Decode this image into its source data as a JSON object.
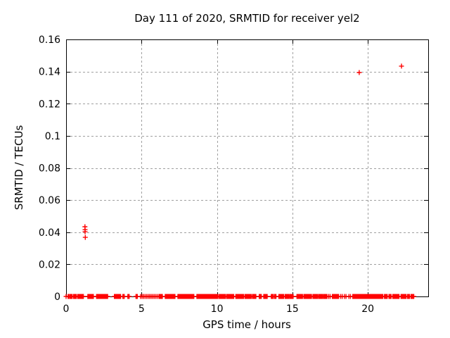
{
  "chart_data": {
    "type": "scatter",
    "title": "Day 111 of 2020, SRMTID for receiver yel2",
    "xlabel": "GPS time / hours",
    "ylabel": "SRMTID / TECUs",
    "xlim": [
      0,
      24
    ],
    "ylim": [
      0,
      0.16
    ],
    "xticks": [
      0,
      5,
      10,
      15,
      20
    ],
    "xtick_labels": [
      "0",
      "5",
      "10",
      "15",
      "20"
    ],
    "yticks": [
      0,
      0.02,
      0.04,
      0.06,
      0.08,
      0.1,
      0.12,
      0.14,
      0.16
    ],
    "ytick_labels": [
      "0",
      "0.02",
      "0.04",
      "0.06",
      "0.08",
      "0.1",
      "0.12",
      "0.14",
      "0.16"
    ],
    "grid": true,
    "legend": "none",
    "marker": "plus",
    "colors": {
      "points": "#ff0000",
      "axis": "#000000",
      "grid": "#a0a0a0",
      "background": "#ffffff",
      "text": "#000000"
    },
    "series": [
      {
        "name": "SRMTID",
        "points": [
          [
            1.25,
            0.0434
          ],
          [
            1.26,
            0.0416
          ],
          [
            1.26,
            0.0403
          ],
          [
            1.27,
            0.0368
          ],
          [
            19.43,
            0.1394
          ],
          [
            22.23,
            0.1434
          ]
        ]
      }
    ],
    "zero_line_value": 0,
    "zero_run_step_hours": 0.046,
    "zero_line_runs": [
      [
        0.0,
        0.04
      ],
      [
        0.13,
        0.22
      ],
      [
        0.25,
        0.33
      ],
      [
        0.36,
        0.45
      ],
      [
        0.5,
        0.7
      ],
      [
        0.78,
        1.18
      ],
      [
        1.44,
        1.83
      ],
      [
        2.02,
        2.76
      ],
      [
        3.2,
        3.65
      ],
      [
        3.76,
        3.88
      ],
      [
        4.09,
        4.19
      ],
      [
        4.63,
        4.74
      ],
      [
        4.94,
        4.96
      ],
      [
        5.04,
        5.06
      ],
      [
        5.14,
        5.16
      ],
      [
        5.24,
        5.26
      ],
      [
        5.34,
        5.36
      ],
      [
        5.44,
        5.46
      ],
      [
        5.54,
        5.56
      ],
      [
        5.64,
        5.66
      ],
      [
        5.74,
        5.76
      ],
      [
        5.84,
        5.86
      ],
      [
        5.94,
        5.96
      ],
      [
        6.04,
        6.06
      ],
      [
        6.15,
        6.4
      ],
      [
        6.57,
        7.25
      ],
      [
        7.41,
        8.5
      ],
      [
        8.67,
        9.6
      ],
      [
        9.65,
        10.1
      ],
      [
        10.15,
        10.6
      ],
      [
        10.65,
        11.15
      ],
      [
        11.25,
        11.8
      ],
      [
        11.85,
        12.3
      ],
      [
        12.35,
        12.62
      ],
      [
        12.8,
        12.95
      ],
      [
        13.1,
        13.35
      ],
      [
        13.6,
        13.75
      ],
      [
        13.82,
        13.95
      ],
      [
        14.1,
        14.45
      ],
      [
        14.52,
        14.75
      ],
      [
        14.82,
        15.05
      ],
      [
        15.3,
        15.7
      ],
      [
        15.76,
        16.3
      ],
      [
        16.36,
        16.7
      ],
      [
        16.76,
        17.0
      ],
      [
        17.06,
        17.3
      ],
      [
        17.4,
        17.42
      ],
      [
        17.5,
        17.52
      ],
      [
        17.65,
        18.1
      ],
      [
        18.2,
        18.22
      ],
      [
        18.3,
        18.32
      ],
      [
        18.45,
        18.47
      ],
      [
        18.55,
        18.57
      ],
      [
        18.75,
        18.77
      ],
      [
        18.85,
        18.87
      ],
      [
        19.0,
        19.15
      ],
      [
        19.2,
        21.0
      ],
      [
        21.1,
        21.3
      ],
      [
        21.4,
        21.55
      ],
      [
        21.65,
        22.1
      ],
      [
        22.2,
        22.55
      ],
      [
        22.62,
        22.8
      ],
      [
        22.86,
        23.05
      ]
    ]
  }
}
